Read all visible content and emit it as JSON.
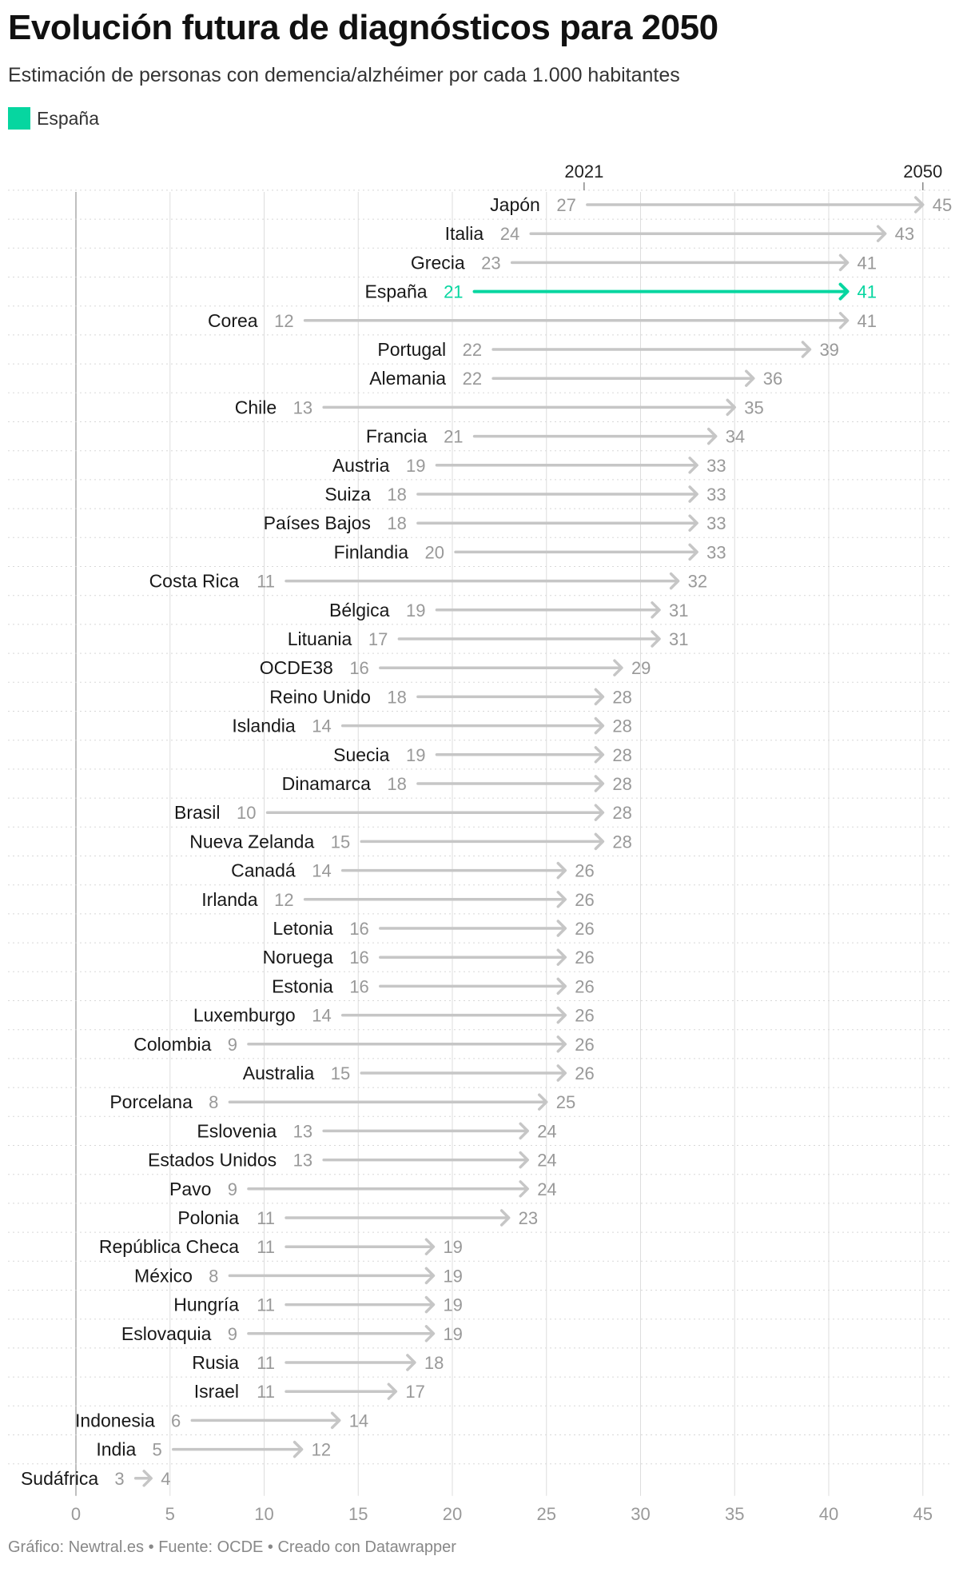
{
  "title": "Evolución futura de diagnósticos para 2050",
  "subtitle": "Estimación de personas con demencia/alzhéimer por cada 1.000 habitantes",
  "legend": {
    "label": "España",
    "color": "#06D6A0"
  },
  "footer": {
    "chart_credit": "Gráfico: Newtral.es",
    "source": "Fuente: OCDE",
    "tool": "Creado con Datawrapper",
    "separator": " • "
  },
  "colors": {
    "highlight": "#06D6A0",
    "default": "#c6c6c6",
    "value_text": "#999999",
    "grid": "#dddddd"
  },
  "chart_data": {
    "type": "arrow",
    "start_label": "2021",
    "end_label": "2050",
    "xlim": [
      0,
      45
    ],
    "xticks": [
      0,
      5,
      10,
      15,
      20,
      25,
      30,
      35,
      40,
      45
    ],
    "highlight": "España",
    "rows": [
      {
        "country": "Japón",
        "start": 27,
        "end": 45
      },
      {
        "country": "Italia",
        "start": 24,
        "end": 43
      },
      {
        "country": "Grecia",
        "start": 23,
        "end": 41
      },
      {
        "country": "España",
        "start": 21,
        "end": 41
      },
      {
        "country": "Corea",
        "start": 12,
        "end": 41
      },
      {
        "country": "Portugal",
        "start": 22,
        "end": 39
      },
      {
        "country": "Alemania",
        "start": 22,
        "end": 36
      },
      {
        "country": "Chile",
        "start": 13,
        "end": 35
      },
      {
        "country": "Francia",
        "start": 21,
        "end": 34
      },
      {
        "country": "Austria",
        "start": 19,
        "end": 33
      },
      {
        "country": "Suiza",
        "start": 18,
        "end": 33
      },
      {
        "country": "Países Bajos",
        "start": 18,
        "end": 33
      },
      {
        "country": "Finlandia",
        "start": 20,
        "end": 33
      },
      {
        "country": "Costa Rica",
        "start": 11,
        "end": 32
      },
      {
        "country": "Bélgica",
        "start": 19,
        "end": 31
      },
      {
        "country": "Lituania",
        "start": 17,
        "end": 31
      },
      {
        "country": "OCDE38",
        "start": 16,
        "end": 29
      },
      {
        "country": "Reino Unido",
        "start": 18,
        "end": 28
      },
      {
        "country": "Islandia",
        "start": 14,
        "end": 28
      },
      {
        "country": "Suecia",
        "start": 19,
        "end": 28
      },
      {
        "country": "Dinamarca",
        "start": 18,
        "end": 28
      },
      {
        "country": "Brasil",
        "start": 10,
        "end": 28
      },
      {
        "country": "Nueva Zelanda",
        "start": 15,
        "end": 28
      },
      {
        "country": "Canadá",
        "start": 14,
        "end": 26
      },
      {
        "country": "Irlanda",
        "start": 12,
        "end": 26
      },
      {
        "country": "Letonia",
        "start": 16,
        "end": 26
      },
      {
        "country": "Noruega",
        "start": 16,
        "end": 26
      },
      {
        "country": "Estonia",
        "start": 16,
        "end": 26
      },
      {
        "country": "Luxemburgo",
        "start": 14,
        "end": 26
      },
      {
        "country": "Colombia",
        "start": 9,
        "end": 26
      },
      {
        "country": "Australia",
        "start": 15,
        "end": 26
      },
      {
        "country": "Porcelana",
        "start": 8,
        "end": 25
      },
      {
        "country": "Eslovenia",
        "start": 13,
        "end": 24
      },
      {
        "country": "Estados Unidos",
        "start": 13,
        "end": 24
      },
      {
        "country": "Pavo",
        "start": 9,
        "end": 24
      },
      {
        "country": "Polonia",
        "start": 11,
        "end": 23
      },
      {
        "country": "República Checa",
        "start": 11,
        "end": 19
      },
      {
        "country": "México",
        "start": 8,
        "end": 19
      },
      {
        "country": "Hungría",
        "start": 11,
        "end": 19
      },
      {
        "country": "Eslovaquia",
        "start": 9,
        "end": 19
      },
      {
        "country": "Rusia",
        "start": 11,
        "end": 18
      },
      {
        "country": "Israel",
        "start": 11,
        "end": 17
      },
      {
        "country": "Indonesia",
        "start": 6,
        "end": 14
      },
      {
        "country": "India",
        "start": 5,
        "end": 12
      },
      {
        "country": "Sudáfrica",
        "start": 3,
        "end": 4
      }
    ]
  }
}
